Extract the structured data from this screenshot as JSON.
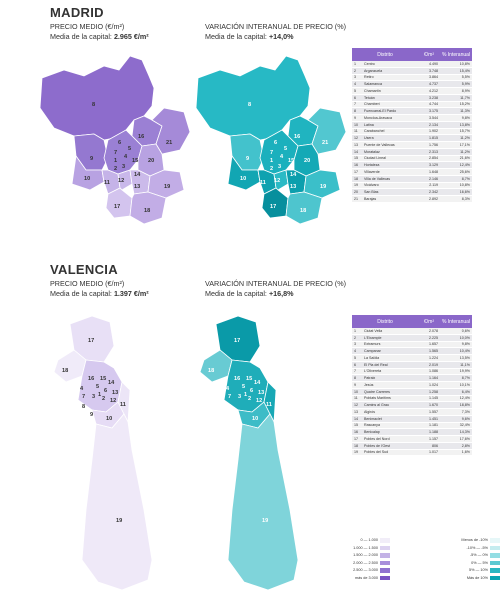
{
  "madrid": {
    "city": "MADRID",
    "price_title": "PRECIO MEDIO (€/m²)",
    "price_avg_label": "Media de la capital:",
    "price_avg_value": "2.965 €/m²",
    "var_title": "VARIACIÓN INTERANUAL DE PRECIO (%)",
    "var_avg_label": "Media de la capital:",
    "var_avg_value": "+14,0%",
    "table_headers": [
      "Distrito",
      "€/m²",
      "% Interanual"
    ],
    "rows": [
      [
        "1",
        "Centro",
        "4.490",
        "10,8%"
      ],
      [
        "2",
        "Arganzuela",
        "3.748",
        "15,4%"
      ],
      [
        "3",
        "Retiro",
        "3.864",
        "5,5%"
      ],
      [
        "4",
        "Salamanca",
        "4.737",
        "5,9%"
      ],
      [
        "5",
        "Chamartín",
        "4.212",
        "8,9%"
      ],
      [
        "6",
        "Tetuán",
        "3.238",
        "11,7%"
      ],
      [
        "7",
        "Chamberí",
        "4.744",
        "15,2%"
      ],
      [
        "8",
        "Fuencarral-El Pardo",
        "3.175",
        "11,3%"
      ],
      [
        "9",
        "Moncloa-Aravaca",
        "3.544",
        "9,8%"
      ],
      [
        "10",
        "Latina",
        "2.134",
        "13,8%"
      ],
      [
        "11",
        "Carabanchel",
        "1.902",
        "15,7%"
      ],
      [
        "12",
        "Usera",
        "1.815",
        "11,2%"
      ],
      [
        "13",
        "Puente de Vallecas",
        "1.756",
        "17,1%"
      ],
      [
        "14",
        "Moratalaz",
        "2.313",
        "11,2%"
      ],
      [
        "15",
        "Ciudad Lineal",
        "2.854",
        "21,6%"
      ],
      [
        "16",
        "Hortaleza",
        "3.129",
        "12,4%"
      ],
      [
        "17",
        "Villaverde",
        "1.648",
        "25,6%"
      ],
      [
        "18",
        "Villa de Vallecas",
        "2.146",
        "8,7%"
      ],
      [
        "19",
        "Vicálvaro",
        "2.119",
        "10,8%"
      ],
      [
        "20",
        "San Blas",
        "2.342",
        "16,6%"
      ],
      [
        "21",
        "Barajas",
        "2.892",
        "8,3%"
      ]
    ],
    "map_labels": [
      "1",
      "2",
      "3",
      "4",
      "5",
      "6",
      "7",
      "8",
      "9",
      "10",
      "11",
      "12",
      "13",
      "14",
      "15",
      "16",
      "17",
      "18",
      "19",
      "20",
      "21"
    ]
  },
  "valencia": {
    "city": "VALENCIA",
    "price_title": "PRECIO MEDIO (€/m²)",
    "price_avg_label": "Media de la capital:",
    "price_avg_value": "1.397 €/m²",
    "var_title": "VARIACIÓN INTERANUAL DE PRECIO (%)",
    "var_avg_label": "Media de la capital:",
    "var_avg_value": "+16,8%",
    "table_headers": [
      "Distrito",
      "€/m²",
      "% Interanual"
    ],
    "rows": [
      [
        "1",
        "Ciutat Vella",
        "2.078",
        "0,6%"
      ],
      [
        "2",
        "L'Eixample",
        "2.225",
        "10,0%"
      ],
      [
        "3",
        "Extramurs",
        "1.657",
        "9,8%"
      ],
      [
        "4",
        "Campanar",
        "1.565",
        "10,4%"
      ],
      [
        "5",
        "La Saïdia",
        "1.224",
        "13,5%"
      ],
      [
        "6",
        "El Pla del Real",
        "2.019",
        "11,1%"
      ],
      [
        "7",
        "L'Olivereta",
        "1.086",
        "19,9%"
      ],
      [
        "8",
        "Patraix",
        "1.164",
        "8,7%"
      ],
      [
        "9",
        "Jesús",
        "1.024",
        "10,1%"
      ],
      [
        "10",
        "Quatre Carreres",
        "1.258",
        "6,4%"
      ],
      [
        "11",
        "Poblats Marítims",
        "1.145",
        "12,4%"
      ],
      [
        "12",
        "Camins al Grau",
        "1.670",
        "18,8%"
      ],
      [
        "13",
        "Algirós",
        "1.557",
        "7,3%"
      ],
      [
        "14",
        "Benimaclet",
        "1.451",
        "9,6%"
      ],
      [
        "15",
        "Rascanya",
        "1.181",
        "32,4%"
      ],
      [
        "16",
        "Benicalap",
        "1.188",
        "14,3%"
      ],
      [
        "17",
        "Pobles del Nord",
        "1.157",
        "17,6%"
      ],
      [
        "18",
        "Pobles de l'Oest",
        "806",
        "2,8%"
      ],
      [
        "19",
        "Pobles del Sud",
        "1.017",
        "1,6%"
      ]
    ],
    "map_labels": [
      "1",
      "2",
      "3",
      "4",
      "5",
      "6",
      "7",
      "8",
      "9",
      "10",
      "11",
      "12",
      "13",
      "14",
      "15",
      "16",
      "17",
      "18",
      "19"
    ]
  },
  "legend": {
    "price_items": [
      "0 — 1.000",
      "1.000 — 1.500",
      "1.500 — 2.000",
      "2.000 — 2.500",
      "2.500 — 3.000",
      "más de 3.000"
    ],
    "var_items": [
      "Menos de -10%",
      "-10% — -5%",
      "-5% — 0%",
      "0% — 5%",
      "5% — 10%",
      "Más de 10%"
    ],
    "price_colors": [
      "#f1edf8",
      "#dcd2f0",
      "#c3b2e6",
      "#a88fdb",
      "#9073d0",
      "#7a55c4"
    ],
    "var_colors": [
      "#e6f7f8",
      "#c4ecef",
      "#93dde3",
      "#5cc9d2",
      "#2bb7c2",
      "#0aa5b3"
    ]
  },
  "colors": {
    "header_madrid": "#8a67c9",
    "header_valencia": "#8a67c9",
    "madrid_price": "#8a67c9",
    "madrid_var": "#25b8c4"
  }
}
